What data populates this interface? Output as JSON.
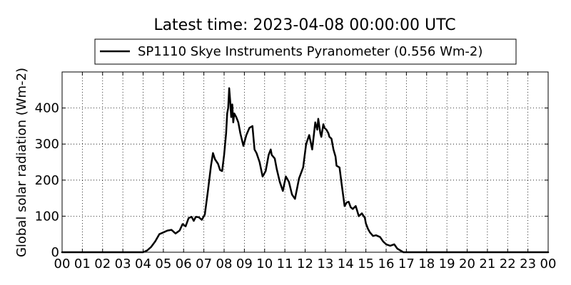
{
  "chart_data": {
    "type": "line",
    "title": "Latest time: 2023-04-08 00:00:00 UTC",
    "xlabel": "",
    "ylabel": "Global solar radiation (Wm-2)",
    "x_tick_labels": [
      "00",
      "01",
      "02",
      "03",
      "04",
      "05",
      "06",
      "07",
      "08",
      "09",
      "10",
      "11",
      "12",
      "13",
      "14",
      "15",
      "16",
      "17",
      "18",
      "19",
      "20",
      "21",
      "22",
      "23",
      "00"
    ],
    "y_ticks": [
      0,
      100,
      200,
      300,
      400
    ],
    "xlim": [
      0,
      24
    ],
    "ylim": [
      0,
      500
    ],
    "grid": true,
    "legend_position": "top-center",
    "series": [
      {
        "name": "SP1110 Skye Instruments Pyranometer (0.556 Wm-2)",
        "color": "#000000",
        "x": [
          0,
          3.6,
          4.0,
          4.2,
          4.4,
          4.6,
          4.8,
          5.0,
          5.2,
          5.4,
          5.6,
          5.8,
          5.95,
          6.1,
          6.25,
          6.4,
          6.5,
          6.6,
          6.75,
          6.9,
          7.05,
          7.2,
          7.35,
          7.45,
          7.55,
          7.7,
          7.8,
          7.9,
          8.0,
          8.1,
          8.15,
          8.2,
          8.25,
          8.3,
          8.35,
          8.4,
          8.45,
          8.5,
          8.6,
          8.7,
          8.8,
          8.95,
          9.1,
          9.25,
          9.4,
          9.5,
          9.6,
          9.75,
          9.9,
          10.05,
          10.2,
          10.3,
          10.35,
          10.5,
          10.6,
          10.75,
          10.9,
          11.05,
          11.2,
          11.35,
          11.5,
          11.7,
          11.9,
          12.05,
          12.2,
          12.35,
          12.5,
          12.6,
          12.65,
          12.75,
          12.8,
          12.9,
          12.95,
          13.05,
          13.15,
          13.2,
          13.3,
          13.4,
          13.5,
          13.55,
          13.7,
          13.8,
          13.95,
          14.05,
          14.15,
          14.25,
          14.35,
          14.5,
          14.65,
          14.8,
          14.95,
          15.0,
          15.1,
          15.2,
          15.35,
          15.5,
          15.7,
          15.85,
          16.0,
          16.2,
          16.4,
          16.55,
          16.7,
          16.85,
          17.0,
          17.15,
          17.3,
          17.5,
          17.7,
          17.9,
          18.1,
          19.0,
          24.0
        ],
        "values": [
          0,
          0,
          0,
          5,
          15,
          30,
          50,
          55,
          60,
          62,
          52,
          60,
          78,
          72,
          95,
          98,
          87,
          98,
          97,
          90,
          105,
          170,
          240,
          275,
          258,
          245,
          228,
          225,
          270,
          330,
          385,
          400,
          455,
          420,
          375,
          410,
          360,
          385,
          375,
          360,
          330,
          295,
          325,
          345,
          350,
          285,
          275,
          250,
          210,
          225,
          270,
          285,
          270,
          260,
          230,
          195,
          170,
          210,
          195,
          160,
          148,
          205,
          235,
          300,
          325,
          285,
          360,
          340,
          370,
          330,
          320,
          355,
          345,
          340,
          330,
          320,
          315,
          285,
          265,
          240,
          235,
          190,
          128,
          138,
          140,
          125,
          120,
          128,
          100,
          108,
          95,
          80,
          65,
          55,
          45,
          47,
          42,
          30,
          22,
          18,
          22,
          10,
          5,
          0,
          0,
          0,
          0,
          0,
          0,
          0,
          0,
          0,
          0
        ]
      }
    ]
  }
}
